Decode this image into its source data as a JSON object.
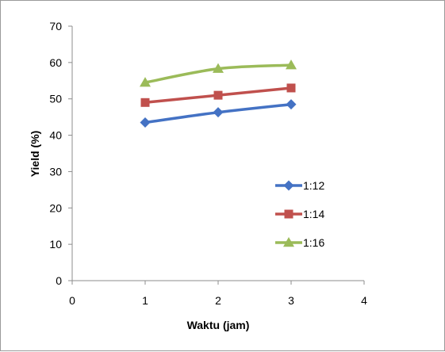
{
  "chart_data": {
    "type": "line",
    "title": "",
    "xlabel": "Waktu (jam)",
    "ylabel": "Yield (%)",
    "xlim": [
      0,
      4
    ],
    "ylim": [
      0,
      70
    ],
    "xticks": [
      0,
      1,
      2,
      3,
      4
    ],
    "yticks": [
      0,
      10,
      20,
      30,
      40,
      50,
      60,
      70
    ],
    "grid": false,
    "legend_position": "right",
    "x": [
      1,
      2,
      3
    ],
    "series": [
      {
        "name": "1:12",
        "values": [
          43.5,
          46.3,
          48.5
        ],
        "color": "#4472C4",
        "marker": "diamond"
      },
      {
        "name": "1:14",
        "values": [
          49.0,
          51.0,
          53.0
        ],
        "color": "#C0504D",
        "marker": "square"
      },
      {
        "name": "1:16",
        "values": [
          54.5,
          58.3,
          59.3
        ],
        "color": "#9BBB59",
        "marker": "triangle"
      }
    ]
  }
}
